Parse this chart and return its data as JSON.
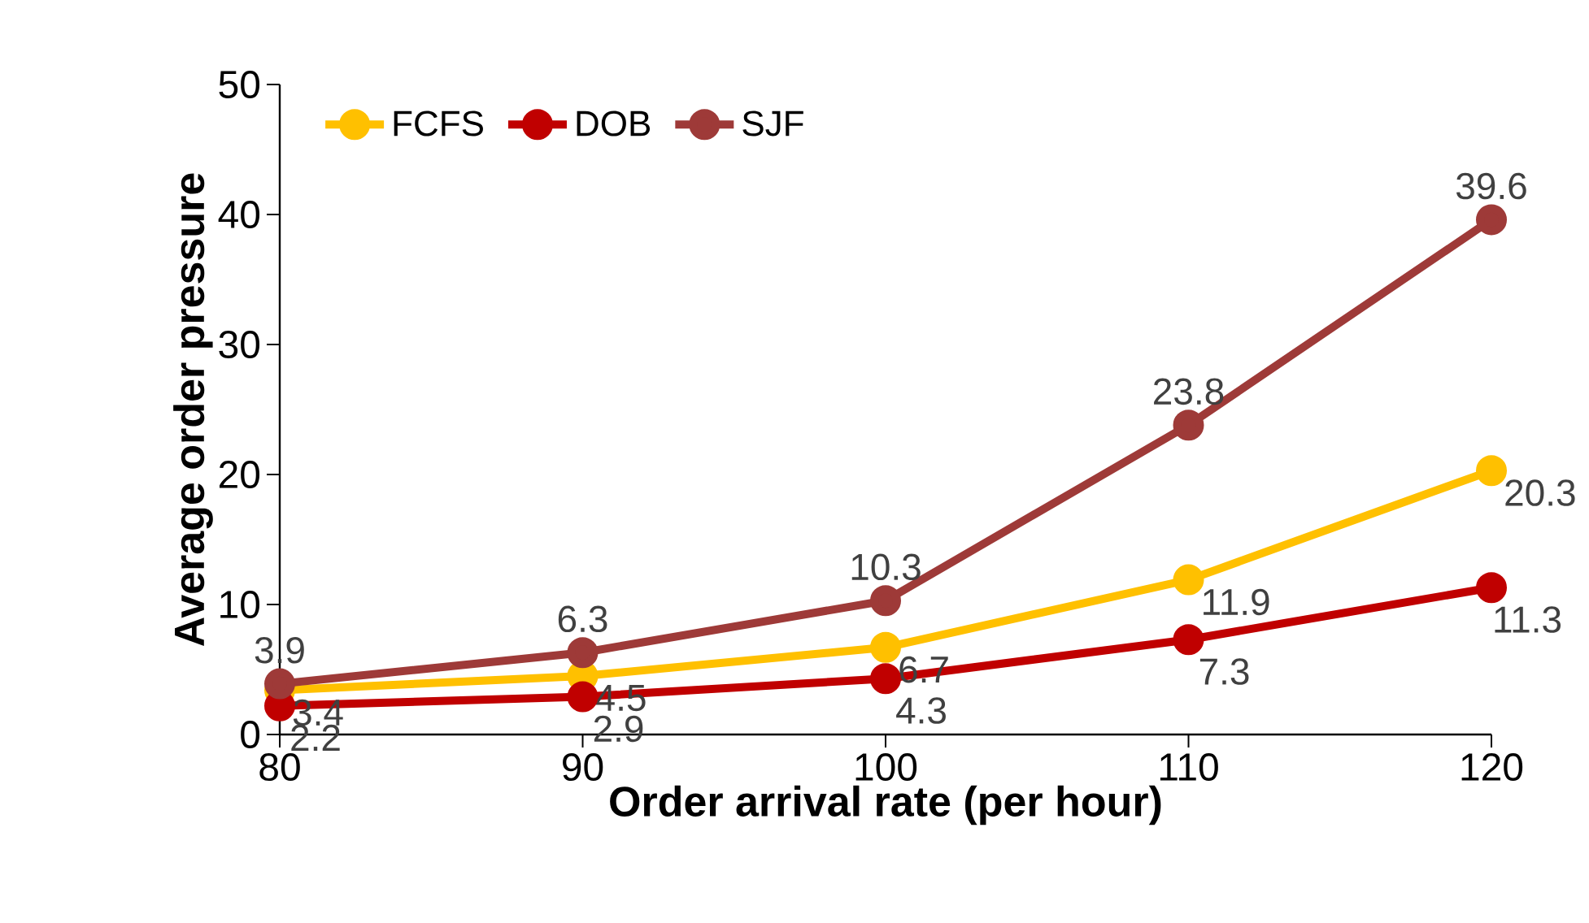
{
  "chart_data": {
    "type": "line",
    "xlabel": "Order arrival rate (per hour)",
    "ylabel": "Average order pressure",
    "x": [
      80,
      90,
      100,
      110,
      120
    ],
    "xlim": [
      80,
      120
    ],
    "xticks": [
      80,
      90,
      100,
      110,
      120
    ],
    "ylim": [
      0,
      50
    ],
    "yticks": [
      0,
      10,
      20,
      30,
      40,
      50
    ],
    "series": [
      {
        "name": "FCFS",
        "color": "#ffc000",
        "values": [
          3.4,
          4.5,
          6.7,
          11.9,
          20.3
        ]
      },
      {
        "name": "DOB",
        "color": "#c00000",
        "values": [
          2.2,
          2.9,
          4.3,
          7.3,
          11.3
        ]
      },
      {
        "name": "SJF",
        "color": "#9e3a38",
        "values": [
          3.9,
          6.3,
          10.3,
          23.8,
          39.6
        ]
      }
    ],
    "legend": "top left",
    "marker": "circle",
    "data_labels": true
  }
}
